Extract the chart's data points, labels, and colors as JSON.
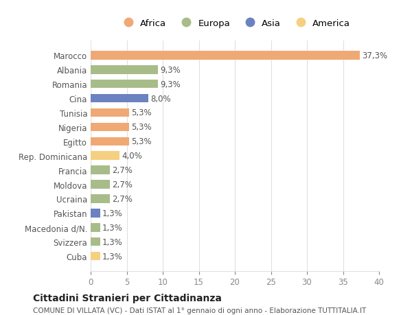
{
  "countries": [
    "Marocco",
    "Albania",
    "Romania",
    "Cina",
    "Tunisia",
    "Nigeria",
    "Egitto",
    "Rep. Dominicana",
    "Francia",
    "Moldova",
    "Ucraina",
    "Pakistan",
    "Macedonia d/N.",
    "Svizzera",
    "Cuba"
  ],
  "values": [
    37.3,
    9.3,
    9.3,
    8.0,
    5.3,
    5.3,
    5.3,
    4.0,
    2.7,
    2.7,
    2.7,
    1.3,
    1.3,
    1.3,
    1.3
  ],
  "labels": [
    "37,3%",
    "9,3%",
    "9,3%",
    "8,0%",
    "5,3%",
    "5,3%",
    "5,3%",
    "4,0%",
    "2,7%",
    "2,7%",
    "2,7%",
    "1,3%",
    "1,3%",
    "1,3%",
    "1,3%"
  ],
  "colors": [
    "#F0A875",
    "#A8BC8A",
    "#A8BC8A",
    "#6B82C0",
    "#F0A875",
    "#F0A875",
    "#F0A875",
    "#F5D080",
    "#A8BC8A",
    "#A8BC8A",
    "#A8BC8A",
    "#6B82C0",
    "#A8BC8A",
    "#A8BC8A",
    "#F5D080"
  ],
  "legend": [
    {
      "label": "Africa",
      "color": "#F0A875"
    },
    {
      "label": "Europa",
      "color": "#A8BC8A"
    },
    {
      "label": "Asia",
      "color": "#6B82C0"
    },
    {
      "label": "America",
      "color": "#F5D080"
    }
  ],
  "xlim": [
    0,
    40
  ],
  "xticks": [
    0,
    5,
    10,
    15,
    20,
    25,
    30,
    35,
    40
  ],
  "title": "Cittadini Stranieri per Cittadinanza",
  "subtitle": "COMUNE DI VILLATA (VC) - Dati ISTAT al 1° gennaio di ogni anno - Elaborazione TUTTITALIA.IT",
  "background_color": "#ffffff",
  "grid_color": "#e0e0e0"
}
